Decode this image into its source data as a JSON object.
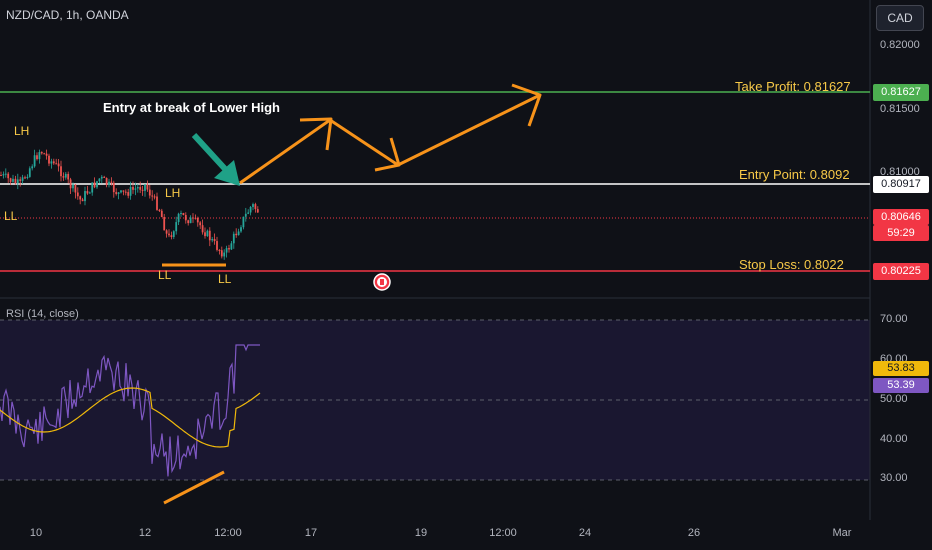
{
  "header": {
    "symbol_title": "NZD/CAD, 1h, OANDA",
    "currency_button": "CAD"
  },
  "price_axis": {
    "ticks": [
      "0.82000",
      "0.81500",
      "0.81000"
    ]
  },
  "price_levels": {
    "take_profit": {
      "label": "Take Profit: 0.81627",
      "badge": "0.81627",
      "color": "#4caf50"
    },
    "entry": {
      "label": "Entry Point: 0.8092",
      "badge": "0.80917",
      "color": "#ffffff"
    },
    "current": {
      "badge_price": "0.80646",
      "badge_countdown": "59:29",
      "color": "#f23645"
    },
    "stop_loss": {
      "label": "Stop Loss: 0.8022",
      "badge": "0.80225",
      "color": "#f23645"
    }
  },
  "annotations": {
    "entry_note": "Entry at break of Lower High",
    "pivots": [
      "LH",
      "LL",
      "LH",
      "LL",
      "LL"
    ],
    "arrow_color": "#f7931a",
    "pointer_color": "#1fa187"
  },
  "rsi_panel": {
    "title": "RSI (14, close)",
    "ticks": [
      "70.00",
      "60.00",
      "50.00",
      "40.00",
      "30.00"
    ],
    "rsi_value": "53.83",
    "ma_value": "53.39",
    "rsi_color": "#7e57c2",
    "ma_color": "#f0b90b"
  },
  "time_axis": {
    "ticks": [
      "10",
      "12",
      "12:00",
      "17",
      "19",
      "12:00",
      "24",
      "26",
      "Mar"
    ]
  }
}
